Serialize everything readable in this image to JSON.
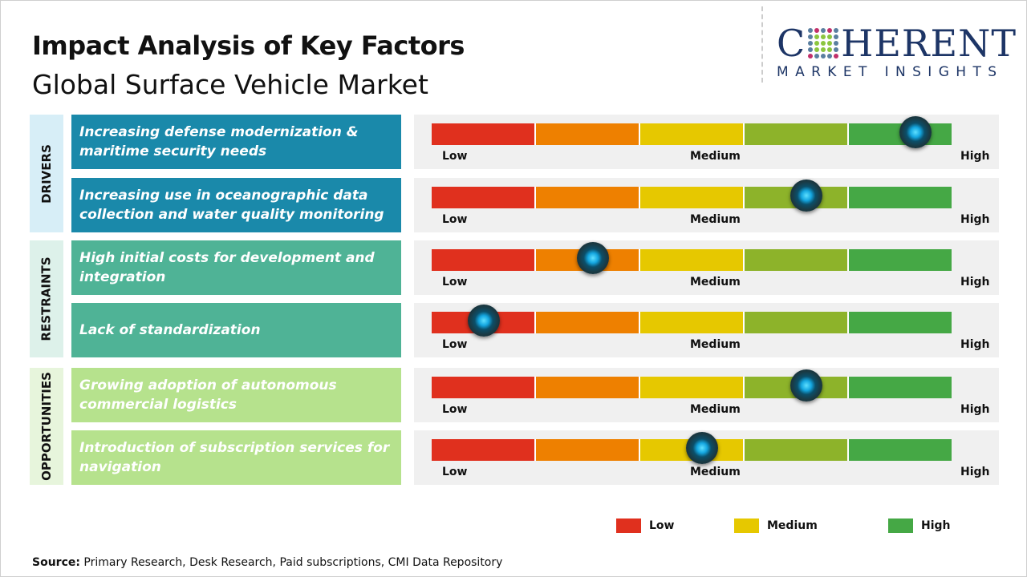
{
  "header": {
    "title": "Impact Analysis of Key Factors",
    "subtitle": "Global Surface Vehicle Market"
  },
  "logo": {
    "text_main": "COHERENT",
    "text_sub": "MARKET INSIGHTS"
  },
  "scale_labels": {
    "low": "Low",
    "medium": "Medium",
    "high": "High"
  },
  "segment_colors": [
    "#e0301e",
    "#ee8000",
    "#e6c800",
    "#8db32a",
    "#45a845"
  ],
  "categories": [
    {
      "label": "DRIVERS",
      "bg": "#d7eef7",
      "row_color": "#1a89aa"
    },
    {
      "label": "RESTRAINTS",
      "bg": "#ddf1ea",
      "row_color": "#4fb396"
    },
    {
      "label": "OPPORTUNITIES",
      "bg": "#e7f5dc",
      "row_color": "#b6e28d"
    }
  ],
  "factors": [
    {
      "category": 0,
      "text": "Increasing defense modernization & maritime security needs",
      "impact": 0.93
    },
    {
      "category": 0,
      "text": "Increasing use in oceanographic data collection and water quality monitoring",
      "impact": 0.72
    },
    {
      "category": 1,
      "text": "High initial costs for development and integration",
      "impact": 0.31
    },
    {
      "category": 1,
      "text": "Lack of standardization",
      "impact": 0.1
    },
    {
      "category": 2,
      "text": "Growing adoption of autonomous commercial logistics",
      "impact": 0.72
    },
    {
      "category": 2,
      "text": "Introduction of  subscription services for navigation",
      "impact": 0.52
    }
  ],
  "legend": [
    {
      "label": "Low",
      "color": "#e0301e"
    },
    {
      "label": "Medium",
      "color": "#e6c800"
    },
    {
      "label": "High",
      "color": "#45a845"
    }
  ],
  "source": {
    "label": "Source:",
    "text": " Primary Research, Desk Research, Paid subscriptions, CMI Data Repository"
  }
}
